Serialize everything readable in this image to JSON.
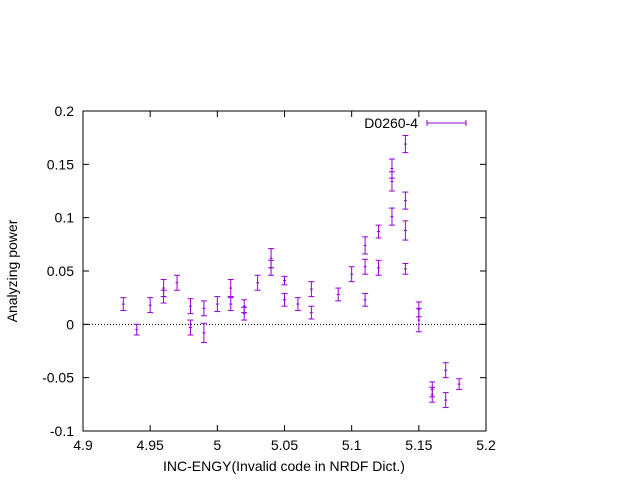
{
  "colors": {
    "series": "#9400d3",
    "axis": "#000000",
    "background": "#ffffff"
  },
  "chart_data": {
    "type": "scatter",
    "title": "",
    "xlabel": "INC-ENGY(Invalid code in NRDF Dict.)",
    "ylabel": "Analyzing power",
    "xlim": [
      4.9,
      5.2
    ],
    "ylim": [
      -0.1,
      0.2
    ],
    "xticks": [
      "4.9",
      "4.95",
      "5",
      "5.05",
      "5.1",
      "5.15",
      "5.2"
    ],
    "yticks": [
      "-0.1",
      "-0.05",
      "0",
      "0.05",
      "0.1",
      "0.15",
      "0.2"
    ],
    "grid": false,
    "zero_line": true,
    "legend_position": "top-right",
    "series": [
      {
        "name": "D0260-4",
        "color": "#9400d3",
        "error_bars": "y",
        "points": [
          {
            "x": 4.93,
            "y": 0.019,
            "err": 0.006
          },
          {
            "x": 4.94,
            "y": -0.005,
            "err": 0.005
          },
          {
            "x": 4.95,
            "y": 0.018,
            "err": 0.007
          },
          {
            "x": 4.96,
            "y": 0.034,
            "err": 0.008
          },
          {
            "x": 4.96,
            "y": 0.026,
            "err": 0.006
          },
          {
            "x": 4.97,
            "y": 0.039,
            "err": 0.007
          },
          {
            "x": 4.98,
            "y": 0.017,
            "err": 0.007
          },
          {
            "x": 4.98,
            "y": -0.003,
            "err": 0.007
          },
          {
            "x": 4.99,
            "y": 0.015,
            "err": 0.007
          },
          {
            "x": 4.99,
            "y": -0.008,
            "err": 0.009
          },
          {
            "x": 5.0,
            "y": 0.019,
            "err": 0.007
          },
          {
            "x": 5.01,
            "y": 0.034,
            "err": 0.008
          },
          {
            "x": 5.01,
            "y": 0.019,
            "err": 0.006
          },
          {
            "x": 5.02,
            "y": 0.017,
            "err": 0.006
          },
          {
            "x": 5.02,
            "y": 0.01,
            "err": 0.006
          },
          {
            "x": 5.03,
            "y": 0.039,
            "err": 0.007
          },
          {
            "x": 5.04,
            "y": 0.062,
            "err": 0.009
          },
          {
            "x": 5.04,
            "y": 0.053,
            "err": 0.007
          },
          {
            "x": 5.05,
            "y": 0.041,
            "err": 0.004
          },
          {
            "x": 5.05,
            "y": 0.023,
            "err": 0.006
          },
          {
            "x": 5.06,
            "y": 0.019,
            "err": 0.006
          },
          {
            "x": 5.07,
            "y": 0.033,
            "err": 0.007
          },
          {
            "x": 5.07,
            "y": 0.011,
            "err": 0.006
          },
          {
            "x": 5.09,
            "y": 0.028,
            "err": 0.006
          },
          {
            "x": 5.1,
            "y": 0.047,
            "err": 0.007
          },
          {
            "x": 5.11,
            "y": 0.074,
            "err": 0.008
          },
          {
            "x": 5.11,
            "y": 0.054,
            "err": 0.007
          },
          {
            "x": 5.11,
            "y": 0.023,
            "err": 0.006
          },
          {
            "x": 5.12,
            "y": 0.087,
            "err": 0.006
          },
          {
            "x": 5.12,
            "y": 0.053,
            "err": 0.007
          },
          {
            "x": 5.13,
            "y": 0.146,
            "err": 0.009
          },
          {
            "x": 5.13,
            "y": 0.134,
            "err": 0.009
          },
          {
            "x": 5.13,
            "y": 0.101,
            "err": 0.008
          },
          {
            "x": 5.14,
            "y": 0.169,
            "err": 0.008
          },
          {
            "x": 5.14,
            "y": 0.116,
            "err": 0.008
          },
          {
            "x": 5.14,
            "y": 0.088,
            "err": 0.009
          },
          {
            "x": 5.14,
            "y": 0.052,
            "err": 0.005
          },
          {
            "x": 5.15,
            "y": 0.014,
            "err": 0.007
          },
          {
            "x": 5.15,
            "y": 0.004,
            "err": 0.011
          },
          {
            "x": 5.16,
            "y": -0.061,
            "err": 0.007
          },
          {
            "x": 5.16,
            "y": -0.066,
            "err": 0.007
          },
          {
            "x": 5.17,
            "y": -0.043,
            "err": 0.007
          },
          {
            "x": 5.17,
            "y": -0.071,
            "err": 0.007
          },
          {
            "x": 5.18,
            "y": -0.056,
            "err": 0.005
          }
        ]
      }
    ]
  }
}
